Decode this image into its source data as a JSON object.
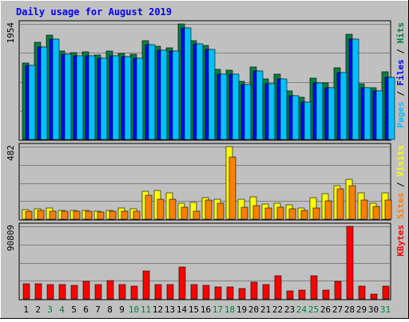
{
  "chart_data": {
    "type": "bar",
    "title": "Daily usage for August 2019",
    "categories": [
      "1",
      "2",
      "3",
      "4",
      "5",
      "6",
      "7",
      "8",
      "9",
      "10",
      "11",
      "12",
      "13",
      "14",
      "15",
      "16",
      "17",
      "18",
      "19",
      "20",
      "21",
      "22",
      "23",
      "24",
      "25",
      "26",
      "27",
      "28",
      "29",
      "30",
      "31"
    ],
    "weekend_days": [
      "3",
      "4",
      "10",
      "11",
      "17",
      "18",
      "24",
      "25",
      "31"
    ],
    "panels": [
      {
        "id": "hits-files-pages",
        "ymax_label": "1954",
        "ymax": 1954,
        "grid": true,
        "right_label": [
          {
            "text": "Pages",
            "color": "#00c0ff"
          },
          {
            "text": " / ",
            "color": "#000000"
          },
          {
            "text": "Files",
            "color": "#0000ff"
          },
          {
            "text": " / ",
            "color": "#000000"
          },
          {
            "text": "Hits",
            "color": "#008040"
          }
        ],
        "series": [
          {
            "name": "Hits",
            "color": "#008040",
            "values": [
              1300,
              1640,
              1770,
              1500,
              1470,
              1480,
              1430,
              1490,
              1450,
              1440,
              1670,
              1580,
              1550,
              1950,
              1670,
              1590,
              1180,
              1170,
              990,
              1230,
              1030,
              1100,
              825,
              720,
              1035,
              960,
              1215,
              1775,
              950,
              880,
              1140
            ]
          },
          {
            "name": "Files",
            "color": "#0000ff",
            "values": [
              1250,
              1560,
              1700,
              1440,
              1420,
              1420,
              1370,
              1410,
              1400,
              1380,
              1610,
              1510,
              1490,
              1880,
              1620,
              1520,
              1100,
              1100,
              930,
              1160,
              950,
              1020,
              740,
              640,
              960,
              870,
              1130,
              1700,
              880,
              820,
              1050
            ]
          },
          {
            "name": "Pages",
            "color": "#00c0ff",
            "values": [
              1250,
              1560,
              1700,
              1440,
              1420,
              1420,
              1370,
              1410,
              1400,
              1380,
              1610,
              1510,
              1490,
              1880,
              1620,
              1520,
              1100,
              1100,
              930,
              1160,
              950,
              1020,
              740,
              640,
              960,
              870,
              1130,
              1700,
              880,
              820,
              1050
            ]
          }
        ]
      },
      {
        "id": "visits-sites",
        "ymax_label": "482",
        "ymax": 482,
        "grid": true,
        "right_label": [
          {
            "text": "Sites",
            "color": "#ff8000"
          },
          {
            "text": " / ",
            "color": "#000000"
          },
          {
            "text": "Visits",
            "color": "#ffff00"
          }
        ],
        "series": [
          {
            "name": "Visits",
            "color": "#ffff00",
            "values": [
              65,
              68,
              72,
              60,
              58,
              58,
              55,
              60,
              72,
              68,
              185,
              190,
              175,
              105,
              110,
              145,
              135,
              482,
              130,
              148,
              100,
              105,
              95,
              75,
              145,
              170,
              225,
              265,
              175,
              105,
              175
            ]
          },
          {
            "name": "Sites",
            "color": "#ff8000",
            "values": [
              55,
              57,
              55,
              52,
              52,
              52,
              50,
              52,
              55,
              55,
              160,
              135,
              130,
              80,
              55,
              125,
              105,
              412,
              80,
              90,
              75,
              78,
              70,
              60,
              75,
              120,
              200,
              225,
              125,
              85,
              125
            ]
          }
        ]
      },
      {
        "id": "kbytes",
        "ymax_label": "90809",
        "ymax": 90809,
        "grid": true,
        "right_label": [
          {
            "text": "KBytes",
            "color": "#ff0000"
          }
        ],
        "series": [
          {
            "name": "KBytes",
            "color": "#ff0000",
            "values": [
              18500,
              18500,
              18200,
              18200,
              17200,
              22000,
              17500,
              22500,
              18200,
              16000,
              35000,
              17800,
              17800,
              40000,
              18200,
              17000,
              14500,
              14500,
              12500,
              21000,
              18000,
              29000,
              10000,
              10500,
              29000,
              11000,
              21500,
              90809,
              15500,
              6000,
              15500
            ]
          }
        ]
      }
    ]
  }
}
